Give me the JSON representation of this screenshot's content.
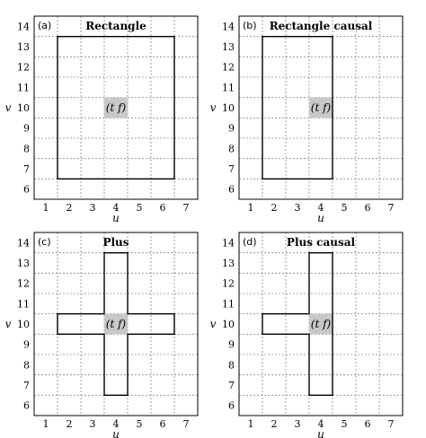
{
  "axes": {
    "x_label": "u",
    "y_label": "v",
    "x_ticks": [
      1,
      2,
      3,
      4,
      5,
      6,
      7
    ],
    "y_ticks": [
      6,
      7,
      8,
      9,
      10,
      11,
      12,
      13,
      14
    ],
    "center_label": "(t  f)"
  },
  "panels": [
    {
      "tag": "(a)",
      "title": "Rectangle",
      "center": [
        4,
        10
      ],
      "outline": [
        [
          1.5,
          6.5
        ],
        [
          6.5,
          6.5
        ],
        [
          6.5,
          13.5
        ],
        [
          1.5,
          13.5
        ]
      ]
    },
    {
      "tag": "(b)",
      "title": "Rectangle causal",
      "center": [
        4,
        10
      ],
      "outline": [
        [
          1.5,
          6.5
        ],
        [
          4.5,
          6.5
        ],
        [
          4.5,
          13.5
        ],
        [
          1.5,
          13.5
        ]
      ]
    },
    {
      "tag": "(c)",
      "title": "Plus",
      "center": [
        4,
        10
      ],
      "outline": [
        [
          3.5,
          13.5
        ],
        [
          4.5,
          13.5
        ],
        [
          4.5,
          10.5
        ],
        [
          6.5,
          10.5
        ],
        [
          6.5,
          9.5
        ],
        [
          4.5,
          9.5
        ],
        [
          4.5,
          6.5
        ],
        [
          3.5,
          6.5
        ],
        [
          3.5,
          9.5
        ],
        [
          1.5,
          9.5
        ],
        [
          1.5,
          10.5
        ],
        [
          3.5,
          10.5
        ]
      ]
    },
    {
      "tag": "(d)",
      "title": "Plus causal",
      "center": [
        4,
        10
      ],
      "outline": [
        [
          3.5,
          13.5
        ],
        [
          4.5,
          13.5
        ],
        [
          4.5,
          9.5
        ],
        [
          4.5,
          6.5
        ],
        [
          3.5,
          6.5
        ],
        [
          3.5,
          9.5
        ],
        [
          1.5,
          9.5
        ],
        [
          1.5,
          10.5
        ],
        [
          3.5,
          10.5
        ]
      ]
    }
  ]
}
